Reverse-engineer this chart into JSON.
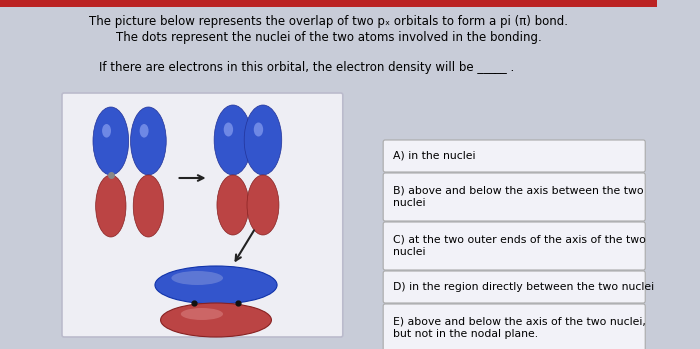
{
  "bg_color": "#c8ccd8",
  "panel_bg": "#eeeef4",
  "panel_border": "#bbbbcc",
  "title_line1": "The picture below represents the overlap of two pₓ orbitals to form a pi (π) bond.",
  "title_line2": "The dots represent the nuclei of the two atoms involved in the bonding.",
  "question": "If there are electrons in this orbital, the electron density will be _____ .",
  "options": [
    "A) in the nuclei",
    "B) above and below the axis between the two\nnuclei",
    "C) at the two outer ends of the axis of the two\nnuclei",
    "D) in the region directly between the two nuclei",
    "E) above and below the axis of the two nuclei,\nbut not in the nodal plane."
  ],
  "blue_color": "#3355cc",
  "blue_light": "#6688ee",
  "red_color": "#bb4444",
  "red_light": "#dd8888",
  "top_bar_color": "#bb2222",
  "box_bg": "#f2f2f8",
  "box_border": "#aaaaaa",
  "arrow_color": "#222222"
}
